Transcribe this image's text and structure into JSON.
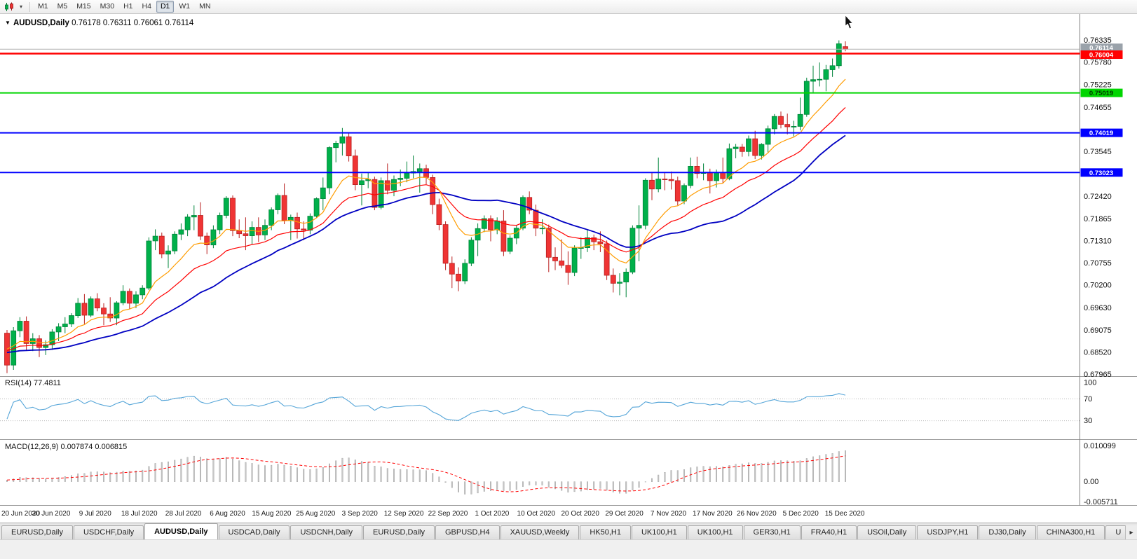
{
  "toolbar": {
    "timeframes": [
      "M1",
      "M5",
      "M15",
      "M30",
      "H1",
      "H4",
      "D1",
      "W1",
      "MN"
    ],
    "active_timeframe": "D1"
  },
  "icons": {
    "chart_type": "candlestick-chart",
    "chart_dropdown": "▾",
    "header_marker": "▼",
    "tab_scroll_right": "▸"
  },
  "header": {
    "symbol_period": "AUDUSD,Daily",
    "open": "0.76178",
    "high": "0.76311",
    "low": "0.76061",
    "close": "0.76114"
  },
  "price_axis_labels": [
    "0.76335",
    "0.75780",
    "0.75225",
    "0.74655",
    "0.73545",
    "0.72420",
    "0.71865",
    "0.71310",
    "0.70755",
    "0.70200",
    "0.69630",
    "0.69075",
    "0.68520",
    "0.67965"
  ],
  "price_markers": [
    {
      "name": "bid",
      "value": "0.76114",
      "color": "#9aa2aa",
      "text": "#ffffff"
    },
    {
      "name": "red-line",
      "value": "0.76004",
      "color": "#ff0000",
      "text": "#ffffff"
    },
    {
      "name": "green-line",
      "value": "0.75019",
      "color": "#00d500",
      "text": "#003300"
    },
    {
      "name": "blue-line-upper",
      "value": "0.74019",
      "color": "#0000ff",
      "text": "#ffffff"
    },
    {
      "name": "blue-line-lower",
      "value": "0.73023",
      "color": "#0000ff",
      "text": "#ffffff"
    }
  ],
  "rsi_panel": {
    "label": "RSI(14) 77.4811",
    "value": 77.4811,
    "period": 14,
    "axis_labels": [
      "100",
      "70",
      "30"
    ]
  },
  "macd_panel": {
    "label": "MACD(12,26,9) 0.007874 0.006815",
    "value": 0.007874,
    "signal": 0.006815,
    "axis_labels": [
      "0.010099",
      "0.00",
      "-0.005711"
    ]
  },
  "tabs": {
    "items": [
      "EURUSD,Daily",
      "USDCHF,Daily",
      "AUDUSD,Daily",
      "USDCAD,Daily",
      "USDCNH,Daily",
      "EURUSD,Daily",
      "GBPUSD,H4",
      "XAUUSD,Weekly",
      "HK50,H1",
      "UK100,H1",
      "UK100,H1",
      "GER30,H1",
      "FRA40,H1",
      "USOil,Daily",
      "USDJPY,H1",
      "DJ30,Daily",
      "CHINA300,H1",
      "U"
    ],
    "active_index": 2
  },
  "colors": {
    "up": "#00b04a",
    "up_edge": "#00843a",
    "down": "#ef3434",
    "down_edge": "#b81f1f",
    "ma_fast": "#ff9c00",
    "ma_mid": "#ff0000",
    "ma_slow": "#0000c2",
    "rsi_line": "#55a5d8",
    "macd_hist": "#c6c6c6",
    "macd_hist_edge": "#9e9e9e",
    "macd_signal": "#ff0000",
    "bid_line": "#b4b4b4",
    "separator": "#9a9a9a",
    "axis_text": "#111111"
  },
  "chart_data": {
    "type": "candlestick",
    "title": "AUDUSD,Daily",
    "symbol": "AUDUSD",
    "timeframe": "Daily",
    "y_range": [
      0.6794,
      0.7696
    ],
    "macd_range": [
      -0.0062,
      0.0112
    ],
    "rsi_levels": [
      70,
      30
    ],
    "ma_periods": {
      "fast_ema": 10,
      "mid_ema": 20,
      "slow_sma": 30
    },
    "bid": 0.76114,
    "hlines": [
      {
        "value": 0.76004,
        "color": "#ff0000",
        "width": 2.6
      },
      {
        "value": 0.75019,
        "color": "#00d500",
        "width": 2
      },
      {
        "value": 0.74019,
        "color": "#0000ff",
        "width": 2
      },
      {
        "value": 0.73023,
        "color": "#0000ff",
        "width": 2
      }
    ],
    "date_labels": [
      "20 Jun 2020",
      "30 Jun 2020",
      "9 Jul 2020",
      "18 Jul 2020",
      "28 Jul 2020",
      "6 Aug 2020",
      "15 Aug 2020",
      "25 Aug 2020",
      "3 Sep 2020",
      "12 Sep 2020",
      "22 Sep 2020",
      "1 Oct 2020",
      "10 Oct 2020",
      "20 Oct 2020",
      "29 Oct 2020",
      "7 Nov 2020",
      "17 Nov 2020",
      "26 Nov 2020",
      "5 Dec 2020",
      "15 Dec 2020"
    ],
    "candles": [
      [
        0.69,
        0.6908,
        0.68,
        0.682
      ],
      [
        0.682,
        0.6915,
        0.6808,
        0.6906
      ],
      [
        0.6906,
        0.694,
        0.689,
        0.693
      ],
      [
        0.693,
        0.6942,
        0.6857,
        0.6874
      ],
      [
        0.6874,
        0.69,
        0.6855,
        0.6886
      ],
      [
        0.6886,
        0.6895,
        0.684,
        0.6864
      ],
      [
        0.6864,
        0.6882,
        0.6845,
        0.6871
      ],
      [
        0.6871,
        0.691,
        0.6858,
        0.6903
      ],
      [
        0.6903,
        0.6925,
        0.688,
        0.6916
      ],
      [
        0.6916,
        0.694,
        0.69,
        0.6923
      ],
      [
        0.6923,
        0.695,
        0.6915,
        0.6944
      ],
      [
        0.6944,
        0.6988,
        0.6938,
        0.6975
      ],
      [
        0.6975,
        0.6998,
        0.6923,
        0.6945
      ],
      [
        0.6945,
        0.6992,
        0.694,
        0.6986
      ],
      [
        0.6986,
        0.7,
        0.6955,
        0.6963
      ],
      [
        0.6963,
        0.6975,
        0.692,
        0.6948
      ],
      [
        0.6948,
        0.699,
        0.6928,
        0.6938
      ],
      [
        0.6938,
        0.698,
        0.692,
        0.6976
      ],
      [
        0.6976,
        0.702,
        0.697,
        0.7005
      ],
      [
        0.7005,
        0.7012,
        0.696,
        0.6975
      ],
      [
        0.6975,
        0.7005,
        0.6963,
        0.6996
      ],
      [
        0.6996,
        0.702,
        0.6985,
        0.7013
      ],
      [
        0.7013,
        0.714,
        0.7008,
        0.7131
      ],
      [
        0.7131,
        0.716,
        0.7108,
        0.7143
      ],
      [
        0.7143,
        0.7152,
        0.7088,
        0.7098
      ],
      [
        0.7098,
        0.712,
        0.7063,
        0.7106
      ],
      [
        0.7106,
        0.7155,
        0.7098,
        0.7148
      ],
      [
        0.7148,
        0.7175,
        0.7133,
        0.7159
      ],
      [
        0.7159,
        0.7198,
        0.7143,
        0.7191
      ],
      [
        0.7191,
        0.722,
        0.7158,
        0.7195
      ],
      [
        0.7195,
        0.7228,
        0.7133,
        0.7143
      ],
      [
        0.7143,
        0.7152,
        0.7098,
        0.7121
      ],
      [
        0.7121,
        0.717,
        0.7113,
        0.7159
      ],
      [
        0.7159,
        0.7202,
        0.7148,
        0.7195
      ],
      [
        0.7195,
        0.7243,
        0.7188,
        0.7238
      ],
      [
        0.7238,
        0.7245,
        0.7143,
        0.7157
      ],
      [
        0.7157,
        0.7185,
        0.7138,
        0.7149
      ],
      [
        0.7149,
        0.719,
        0.7108,
        0.7144
      ],
      [
        0.7144,
        0.718,
        0.7123,
        0.7165
      ],
      [
        0.7165,
        0.719,
        0.7128,
        0.7146
      ],
      [
        0.7146,
        0.7185,
        0.7133,
        0.717
      ],
      [
        0.717,
        0.7215,
        0.7158,
        0.7209
      ],
      [
        0.7209,
        0.725,
        0.7198,
        0.7245
      ],
      [
        0.7245,
        0.7275,
        0.7173,
        0.7182
      ],
      [
        0.7182,
        0.7197,
        0.7133,
        0.719
      ],
      [
        0.719,
        0.7202,
        0.7137,
        0.7161
      ],
      [
        0.7161,
        0.718,
        0.7133,
        0.7158
      ],
      [
        0.7158,
        0.72,
        0.7148,
        0.7193
      ],
      [
        0.7193,
        0.724,
        0.7188,
        0.7237
      ],
      [
        0.7237,
        0.729,
        0.7208,
        0.7264
      ],
      [
        0.7264,
        0.7368,
        0.7248,
        0.7365
      ],
      [
        0.7365,
        0.7382,
        0.7328,
        0.7376
      ],
      [
        0.7376,
        0.7414,
        0.7345,
        0.7392
      ],
      [
        0.7392,
        0.7402,
        0.733,
        0.7344
      ],
      [
        0.7344,
        0.736,
        0.7258,
        0.7272
      ],
      [
        0.7272,
        0.73,
        0.722,
        0.7282
      ],
      [
        0.7282,
        0.7302,
        0.7263,
        0.7285
      ],
      [
        0.7285,
        0.7292,
        0.7208,
        0.7215
      ],
      [
        0.7215,
        0.729,
        0.721,
        0.7282
      ],
      [
        0.7282,
        0.7325,
        0.7248,
        0.7258
      ],
      [
        0.7258,
        0.7295,
        0.7243,
        0.7285
      ],
      [
        0.7285,
        0.731,
        0.7268,
        0.7288
      ],
      [
        0.7288,
        0.733,
        0.7278,
        0.7301
      ],
      [
        0.7301,
        0.7345,
        0.7288,
        0.7305
      ],
      [
        0.7305,
        0.7325,
        0.7252,
        0.7312
      ],
      [
        0.7312,
        0.7322,
        0.7273,
        0.729
      ],
      [
        0.729,
        0.7297,
        0.7198,
        0.7222
      ],
      [
        0.7222,
        0.7237,
        0.7158,
        0.7172
      ],
      [
        0.7172,
        0.718,
        0.7058,
        0.7075
      ],
      [
        0.7075,
        0.7092,
        0.7013,
        0.7048
      ],
      [
        0.7048,
        0.7065,
        0.7005,
        0.7031
      ],
      [
        0.7031,
        0.7085,
        0.7023,
        0.7075
      ],
      [
        0.7075,
        0.714,
        0.7068,
        0.7133
      ],
      [
        0.7133,
        0.7175,
        0.7093,
        0.7162
      ],
      [
        0.7162,
        0.7195,
        0.7153,
        0.7187
      ],
      [
        0.7187,
        0.7195,
        0.713,
        0.7159
      ],
      [
        0.7159,
        0.719,
        0.7148,
        0.7181
      ],
      [
        0.7181,
        0.7208,
        0.7093,
        0.7105
      ],
      [
        0.7105,
        0.7145,
        0.7098,
        0.7138
      ],
      [
        0.7138,
        0.717,
        0.7123,
        0.7163
      ],
      [
        0.7163,
        0.7245,
        0.7158,
        0.724
      ],
      [
        0.724,
        0.7255,
        0.7198,
        0.7208
      ],
      [
        0.7208,
        0.7222,
        0.7143,
        0.7163
      ],
      [
        0.7163,
        0.7185,
        0.7148,
        0.7163
      ],
      [
        0.7163,
        0.7172,
        0.7053,
        0.709
      ],
      [
        0.709,
        0.7115,
        0.7058,
        0.7081
      ],
      [
        0.7081,
        0.7135,
        0.7063,
        0.707
      ],
      [
        0.707,
        0.7105,
        0.7021,
        0.7052
      ],
      [
        0.7052,
        0.712,
        0.7043,
        0.7113
      ],
      [
        0.7113,
        0.714,
        0.7086,
        0.7114
      ],
      [
        0.7114,
        0.716,
        0.7103,
        0.7139
      ],
      [
        0.7139,
        0.7147,
        0.7108,
        0.7129
      ],
      [
        0.7129,
        0.7155,
        0.7103,
        0.7124
      ],
      [
        0.7124,
        0.7132,
        0.7033,
        0.7045
      ],
      [
        0.7045,
        0.7062,
        0.7002,
        0.7025
      ],
      [
        0.7025,
        0.705,
        0.6995,
        0.7028
      ],
      [
        0.7028,
        0.7062,
        0.699,
        0.7053
      ],
      [
        0.7053,
        0.717,
        0.7048,
        0.7163
      ],
      [
        0.7163,
        0.722,
        0.708,
        0.717
      ],
      [
        0.717,
        0.7288,
        0.716,
        0.7283
      ],
      [
        0.7283,
        0.7302,
        0.7233,
        0.7261
      ],
      [
        0.7261,
        0.734,
        0.7253,
        0.7286
      ],
      [
        0.7286,
        0.7302,
        0.7258,
        0.7285
      ],
      [
        0.7285,
        0.7305,
        0.726,
        0.7282
      ],
      [
        0.7282,
        0.7292,
        0.722,
        0.7231
      ],
      [
        0.7231,
        0.7275,
        0.7223,
        0.727
      ],
      [
        0.727,
        0.734,
        0.7263,
        0.7318
      ],
      [
        0.7318,
        0.7342,
        0.7288,
        0.73
      ],
      [
        0.73,
        0.7325,
        0.7283,
        0.7302
      ],
      [
        0.7302,
        0.7312,
        0.725,
        0.7282
      ],
      [
        0.7282,
        0.731,
        0.7265,
        0.7303
      ],
      [
        0.7303,
        0.734,
        0.7275,
        0.7287
      ],
      [
        0.7287,
        0.7375,
        0.7283,
        0.7362
      ],
      [
        0.7362,
        0.7374,
        0.7338,
        0.7366
      ],
      [
        0.7366,
        0.7374,
        0.7342,
        0.7355
      ],
      [
        0.7355,
        0.7395,
        0.7343,
        0.7387
      ],
      [
        0.7387,
        0.7407,
        0.7336,
        0.7345
      ],
      [
        0.7345,
        0.7376,
        0.7335,
        0.7373
      ],
      [
        0.7373,
        0.742,
        0.7353,
        0.7412
      ],
      [
        0.7412,
        0.7449,
        0.7398,
        0.7443
      ],
      [
        0.7443,
        0.7455,
        0.7413,
        0.7423
      ],
      [
        0.7423,
        0.745,
        0.7398,
        0.7417
      ],
      [
        0.7417,
        0.7432,
        0.7393,
        0.7418
      ],
      [
        0.7418,
        0.749,
        0.7408,
        0.7448
      ],
      [
        0.7448,
        0.754,
        0.7442,
        0.7531
      ],
      [
        0.7531,
        0.757,
        0.7503,
        0.7535
      ],
      [
        0.7535,
        0.7578,
        0.7518,
        0.7536
      ],
      [
        0.7536,
        0.7572,
        0.7506,
        0.756
      ],
      [
        0.756,
        0.7588,
        0.7542,
        0.757
      ],
      [
        0.757,
        0.76335,
        0.7563,
        0.7625
      ],
      [
        0.76178,
        0.76311,
        0.76061,
        0.76114
      ]
    ]
  }
}
